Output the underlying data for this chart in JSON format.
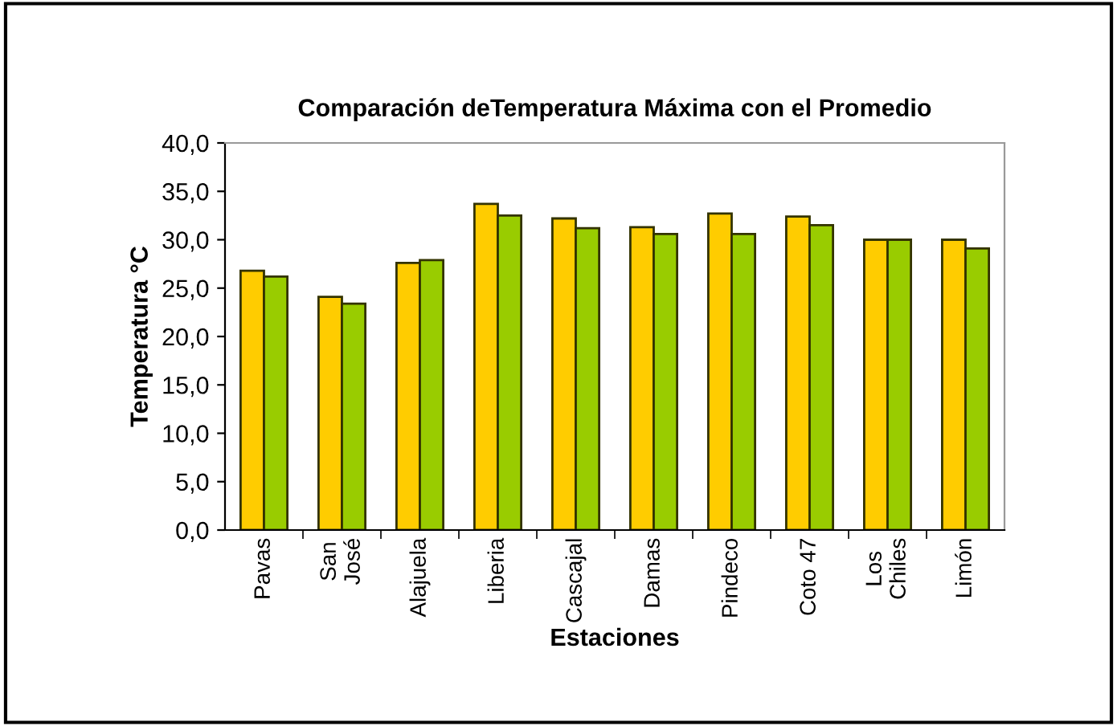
{
  "chart_data": {
    "type": "bar",
    "title": "Comparación deTemperatura Máxima con el Promedio",
    "xlabel": "Estaciones",
    "ylabel": "Temperatura °C",
    "categories": [
      "Pavas",
      "San\nJosé",
      "Alajuela",
      "Liberia",
      "Cascajal",
      "Damas",
      "Pindeco",
      "Coto 47",
      "Los\nChiles",
      "Limón"
    ],
    "series": [
      {
        "color": "#ffcc00",
        "values": [
          26.8,
          24.1,
          27.6,
          33.7,
          32.2,
          31.3,
          32.7,
          32.4,
          30.0,
          30.0
        ]
      },
      {
        "color": "#99cc00",
        "values": [
          26.2,
          23.4,
          27.9,
          32.5,
          31.2,
          30.6,
          30.6,
          31.5,
          30.0,
          29.1
        ]
      }
    ],
    "ylim": [
      0,
      40
    ],
    "yticks": [
      {
        "value": 0,
        "label": "0,0"
      },
      {
        "value": 5,
        "label": "5,0"
      },
      {
        "value": 10,
        "label": "10,0"
      },
      {
        "value": 15,
        "label": "15,0"
      },
      {
        "value": 20,
        "label": "20,0"
      },
      {
        "value": 25,
        "label": "25,0"
      },
      {
        "value": 30,
        "label": "30,0"
      },
      {
        "value": 35,
        "label": "35,0"
      },
      {
        "value": 40,
        "label": "40,0"
      }
    ],
    "grid": false,
    "legend": false
  }
}
